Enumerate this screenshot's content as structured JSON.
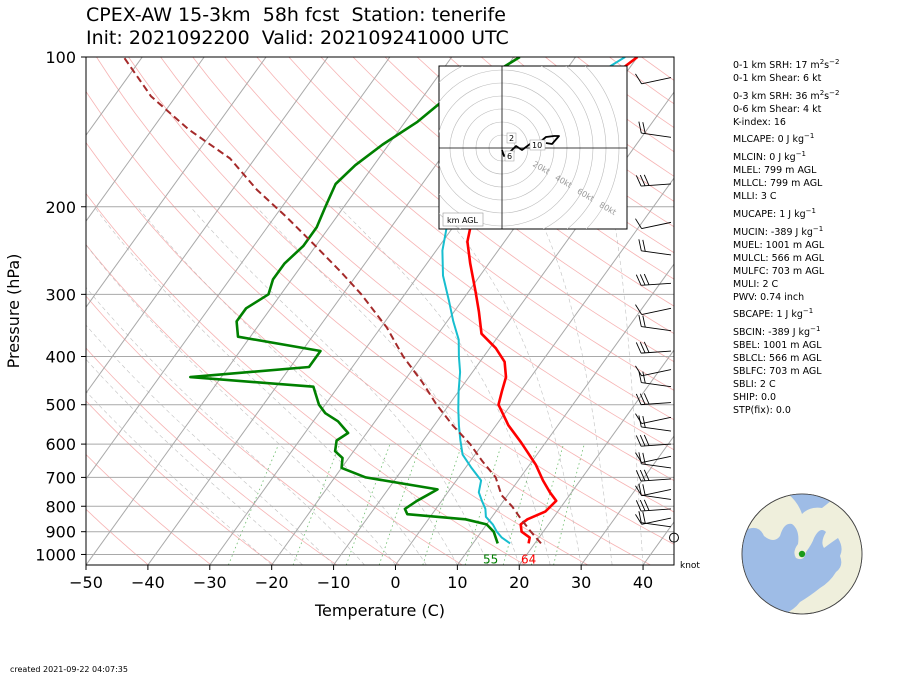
{
  "title": {
    "line1": "CPEX-AW 15-3km  58h fcst  Station: tenerife",
    "line2": "Init: 2021092200  Valid: 202109241000 UTC"
  },
  "chart_data": {
    "type": "line",
    "subtype": "skew-T log-P sounding",
    "xlabel": "Temperature (C)",
    "ylabel": "Pressure (hPa)",
    "xlim": [
      -50,
      45
    ],
    "ylim": [
      1050,
      100
    ],
    "y_scale": "log",
    "x_ticks": [
      -50,
      -40,
      -30,
      -20,
      -10,
      0,
      10,
      20,
      30,
      40
    ],
    "y_ticks": [
      100,
      200,
      300,
      400,
      500,
      600,
      700,
      800,
      900,
      1000
    ],
    "grid": true,
    "colors": {
      "temperature": "#ff0000",
      "dewpoint": "#008000",
      "wetbulb": "#17becf",
      "parcel": "#a52a2a",
      "isotherm": "#a9a9a9",
      "dry_adiabat": "#f08080",
      "moist_adiabat": "#b0b0b0",
      "mixing_ratio": "#2ca02c"
    },
    "series": [
      {
        "key": "temperature",
        "points": [
          [
            19,
            950
          ],
          [
            18.5,
            925
          ],
          [
            16.5,
            900
          ],
          [
            15.5,
            870
          ],
          [
            16,
            850
          ],
          [
            18,
            820
          ],
          [
            18.5,
            780
          ],
          [
            16.5,
            750
          ],
          [
            14,
            710
          ],
          [
            11,
            660
          ],
          [
            8,
            620
          ],
          [
            6,
            595
          ],
          [
            2,
            550
          ],
          [
            -2,
            500
          ],
          [
            -3,
            470
          ],
          [
            -4,
            440
          ],
          [
            -6,
            410
          ],
          [
            -9,
            385
          ],
          [
            -13,
            360
          ],
          [
            -16,
            325
          ],
          [
            -19,
            295
          ],
          [
            -23,
            260
          ],
          [
            -26,
            235
          ],
          [
            -28,
            210
          ],
          [
            -28.5,
            190
          ],
          [
            -28,
            170
          ],
          [
            -27,
            150
          ],
          [
            -25,
            130
          ],
          [
            -22,
            110
          ],
          [
            -20,
            100
          ]
        ]
      },
      {
        "key": "wetbulb",
        "points": [
          [
            16,
            950
          ],
          [
            14,
            925
          ],
          [
            12.5,
            900
          ],
          [
            11,
            870
          ],
          [
            9,
            840
          ],
          [
            8,
            810
          ],
          [
            6.5,
            780
          ],
          [
            5,
            750
          ],
          [
            4,
            710
          ],
          [
            1,
            670
          ],
          [
            -2,
            630
          ],
          [
            -4,
            590
          ],
          [
            -6,
            550
          ],
          [
            -8,
            510
          ],
          [
            -10,
            470
          ],
          [
            -12,
            430
          ],
          [
            -14,
            400
          ],
          [
            -16,
            370
          ],
          [
            -19,
            340
          ],
          [
            -22,
            310
          ],
          [
            -26,
            275
          ],
          [
            -29,
            245
          ],
          [
            -31,
            220
          ],
          [
            -31,
            195
          ],
          [
            -30.5,
            170
          ],
          [
            -29.5,
            150
          ],
          [
            -28,
            130
          ],
          [
            -25,
            110
          ],
          [
            -22,
            100
          ]
        ]
      },
      {
        "key": "dewpoint",
        "points": [
          [
            14,
            950
          ],
          [
            13,
            925
          ],
          [
            12,
            900
          ],
          [
            10,
            870
          ],
          [
            6,
            850
          ],
          [
            -4,
            830
          ],
          [
            -5,
            810
          ],
          [
            -4,
            780
          ],
          [
            -3,
            760
          ],
          [
            -2,
            740
          ],
          [
            -15,
            700
          ],
          [
            -20,
            670
          ],
          [
            -21,
            640
          ],
          [
            -23,
            620
          ],
          [
            -24,
            590
          ],
          [
            -23,
            570
          ],
          [
            -26,
            540
          ],
          [
            -29,
            520
          ],
          [
            -31,
            500
          ],
          [
            -34,
            460
          ],
          [
            -55,
            440
          ],
          [
            -37,
            420
          ],
          [
            -37,
            390
          ],
          [
            -52,
            365
          ],
          [
            -54,
            340
          ],
          [
            -54,
            320
          ],
          [
            -52,
            300
          ],
          [
            -53,
            280
          ],
          [
            -53,
            260
          ],
          [
            -52,
            240
          ],
          [
            -52,
            220
          ],
          [
            -53,
            200
          ],
          [
            -54,
            180
          ],
          [
            -53,
            165
          ],
          [
            -51,
            150
          ],
          [
            -48,
            135
          ],
          [
            -46,
            120
          ],
          [
            -42,
            110
          ],
          [
            -39,
            100
          ]
        ]
      },
      {
        "key": "parcel",
        "points": [
          [
            21,
            950
          ],
          [
            18,
            900
          ],
          [
            15,
            850
          ],
          [
            12,
            800
          ],
          [
            9,
            760
          ],
          [
            6,
            700
          ],
          [
            2,
            650
          ],
          [
            -2,
            600
          ],
          [
            -7,
            550
          ],
          [
            -12,
            500
          ],
          [
            -17,
            450
          ],
          [
            -23,
            400
          ],
          [
            -29,
            350
          ],
          [
            -37,
            300
          ],
          [
            -43,
            270
          ],
          [
            -50,
            240
          ],
          [
            -58,
            210
          ],
          [
            -66,
            185
          ],
          [
            -74,
            160
          ],
          [
            -84,
            140
          ],
          [
            -94,
            120
          ],
          [
            -103,
            100
          ]
        ]
      }
    ],
    "surface_labels": {
      "dewpoint": "55",
      "temperature": "64"
    },
    "wind_unit": "knot",
    "created": "created 2021-09-22 04:07:35"
  },
  "hodograph": {
    "height_unit_label": "km AGL",
    "ring_labels": [
      "20kt",
      "40kt",
      "60kt",
      "80kt"
    ],
    "height_labels": [
      "2",
      "6",
      "10"
    ]
  },
  "indices": [
    {
      "l": "0-1 km SRH:",
      "v": "17 m",
      "sup": "2",
      "v2": "s",
      "sup2": "−2",
      "g": false
    },
    {
      "l": "0-1 km Shear:",
      "v": "6 kt",
      "g": false
    },
    {
      "l": "0-3 km SRH:",
      "v": "36 m",
      "sup": "2",
      "v2": "s",
      "sup2": "−2",
      "g": true
    },
    {
      "l": "0-6 km Shear:",
      "v": "4 kt",
      "g": false
    },
    {
      "l": "K-index:",
      "v": "16",
      "g": false
    },
    {
      "l": "MLCAPE:",
      "v": "0 J kg",
      "sup": "−1",
      "g": true
    },
    {
      "l": "MLCIN:",
      "v": "0 J kg",
      "sup": "−1",
      "g": true
    },
    {
      "l": "MLEL:",
      "v": "799 m AGL",
      "g": false
    },
    {
      "l": "MLLCL:",
      "v": "799 m AGL",
      "g": false
    },
    {
      "l": "MLLI:",
      "v": "3 C",
      "g": false
    },
    {
      "l": "MUCAPE:",
      "v": "1 J kg",
      "sup": "−1",
      "g": true
    },
    {
      "l": "MUCIN:",
      "v": "-389 J kg",
      "sup": "−1",
      "g": true
    },
    {
      "l": "MUEL:",
      "v": "1001 m AGL",
      "g": false
    },
    {
      "l": "MULCL:",
      "v": "566 m AGL",
      "g": false
    },
    {
      "l": "MULFC:",
      "v": "703 m AGL",
      "g": false
    },
    {
      "l": "MULI:",
      "v": "2 C",
      "g": false
    },
    {
      "l": "PWV:",
      "v": "0.74 inch",
      "g": false
    },
    {
      "l": "SBCAPE:",
      "v": "1 J kg",
      "sup": "−1",
      "g": true
    },
    {
      "l": "SBCIN:",
      "v": "-389 J kg",
      "sup": "−1",
      "g": true
    },
    {
      "l": "SBEL:",
      "v": "1001 m AGL",
      "g": false
    },
    {
      "l": "SBLCL:",
      "v": "566 m AGL",
      "g": false
    },
    {
      "l": "SBLFC:",
      "v": "703 m AGL",
      "g": false
    },
    {
      "l": "SBLI:",
      "v": "2 C",
      "g": false
    },
    {
      "l": "SHIP:",
      "v": "0.0",
      "g": false
    },
    {
      "l": "STP(fix):",
      "v": "0.0",
      "g": false
    }
  ],
  "globe": {
    "ocean_color": "#9ebce6",
    "land_color": "#efefdc",
    "marker_color": "#1a9a1a"
  }
}
